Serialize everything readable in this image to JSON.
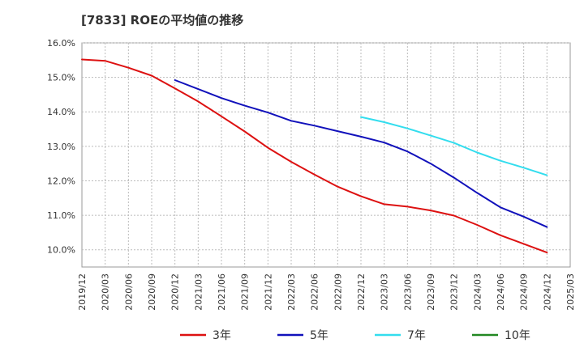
{
  "chart_data": {
    "type": "line",
    "title": "[7833]  ROEの平均値の推移",
    "xlabel": "",
    "ylabel": "",
    "ylim": [
      9.5,
      16.0
    ],
    "yticks": [
      10.0,
      11.0,
      12.0,
      13.0,
      14.0,
      15.0,
      16.0
    ],
    "ytick_labels": [
      "10.0%",
      "11.0%",
      "12.0%",
      "13.0%",
      "14.0%",
      "15.0%",
      "16.0%"
    ],
    "categories": [
      "2019/12",
      "2020/03",
      "2020/06",
      "2020/09",
      "2020/12",
      "2021/03",
      "2021/06",
      "2021/09",
      "2021/12",
      "2022/03",
      "2022/06",
      "2022/09",
      "2022/12",
      "2023/03",
      "2023/06",
      "2023/09",
      "2023/12",
      "2024/03",
      "2024/06",
      "2024/09",
      "2024/12",
      "2025/03"
    ],
    "grid": true,
    "legend_position": "bottom",
    "series": [
      {
        "name": "3年",
        "color": "#dd1111",
        "values": [
          15.52,
          15.48,
          15.28,
          15.05,
          14.68,
          14.3,
          13.87,
          13.43,
          12.96,
          12.55,
          12.18,
          11.83,
          11.55,
          11.32,
          11.25,
          11.14,
          10.99,
          10.72,
          10.42,
          10.17,
          9.92,
          null
        ]
      },
      {
        "name": "5年",
        "color": "#1111bb",
        "values": [
          null,
          null,
          null,
          null,
          14.92,
          14.66,
          14.4,
          14.18,
          13.98,
          13.74,
          13.6,
          13.44,
          13.28,
          13.11,
          12.85,
          12.5,
          12.09,
          11.65,
          11.23,
          10.96,
          10.66,
          null
        ]
      },
      {
        "name": "7年",
        "color": "#33ddee",
        "values": [
          null,
          null,
          null,
          null,
          null,
          null,
          null,
          null,
          null,
          null,
          null,
          null,
          13.85,
          13.7,
          13.52,
          13.31,
          13.1,
          12.82,
          12.58,
          12.38,
          12.16,
          null
        ]
      },
      {
        "name": "10年",
        "color": "#228822",
        "values": [
          null,
          null,
          null,
          null,
          null,
          null,
          null,
          null,
          null,
          null,
          null,
          null,
          null,
          null,
          null,
          null,
          null,
          null,
          null,
          null,
          null,
          null
        ]
      }
    ]
  }
}
